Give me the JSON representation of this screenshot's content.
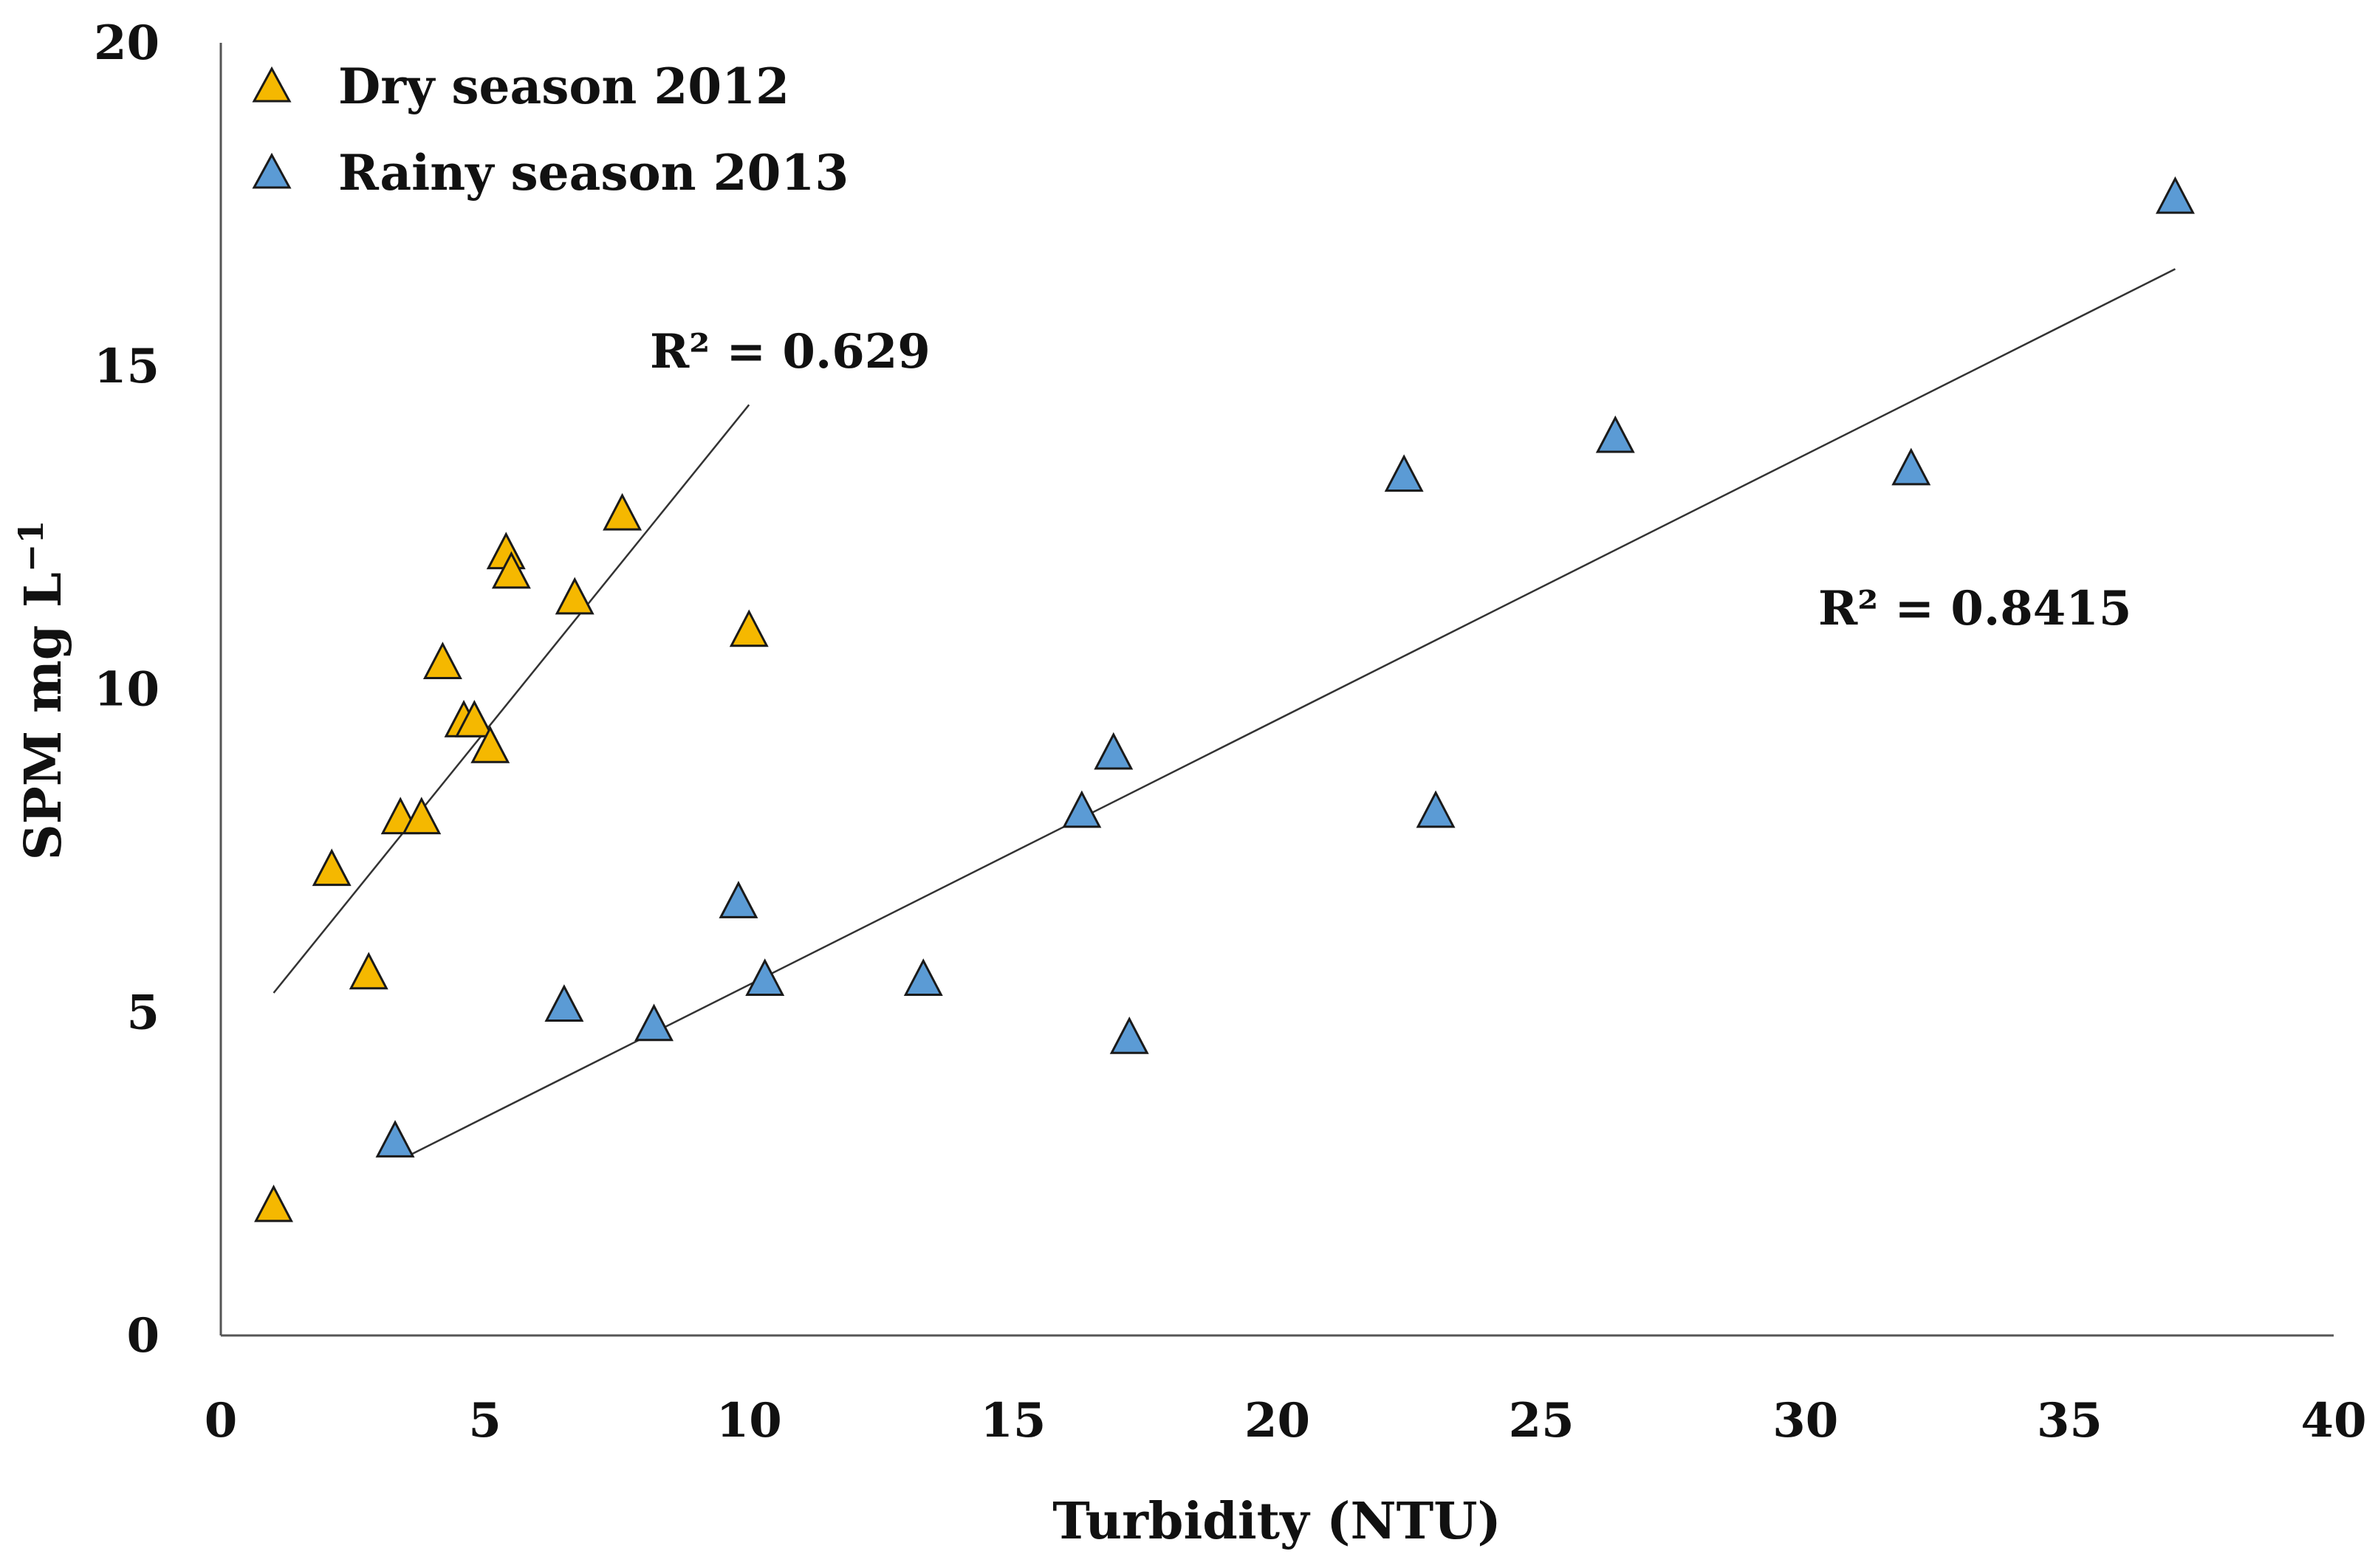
{
  "chart_data": {
    "type": "scatter",
    "title": "",
    "xlabel": "Turbidity (NTU)",
    "ylabel": "SPM  mg L",
    "ylabel_superscript": "−1",
    "xlim": [
      0,
      40
    ],
    "ylim": [
      0,
      20
    ],
    "xticks": [
      0,
      5,
      10,
      15,
      20,
      25,
      30,
      35,
      40
    ],
    "yticks": [
      0,
      5,
      10,
      15,
      20
    ],
    "legend_position": "top-left",
    "marker": "triangle",
    "series": [
      {
        "name": "Dry season 2012",
        "color": "#F5B800",
        "points": [
          {
            "x": 1.0,
            "y": 2.0
          },
          {
            "x": 2.1,
            "y": 7.2
          },
          {
            "x": 2.8,
            "y": 5.6
          },
          {
            "x": 3.4,
            "y": 8.0
          },
          {
            "x": 3.8,
            "y": 8.0
          },
          {
            "x": 4.2,
            "y": 10.4
          },
          {
            "x": 4.6,
            "y": 9.5
          },
          {
            "x": 4.8,
            "y": 9.5
          },
          {
            "x": 5.1,
            "y": 9.1
          },
          {
            "x": 5.4,
            "y": 12.1
          },
          {
            "x": 5.5,
            "y": 11.8
          },
          {
            "x": 6.7,
            "y": 11.4
          },
          {
            "x": 7.6,
            "y": 12.7
          },
          {
            "x": 10.0,
            "y": 10.9
          }
        ],
        "trendline": {
          "x": [
            1.0,
            10.0
          ],
          "y": [
            5.3,
            14.4
          ]
        },
        "r2_label": "R² = 0.629"
      },
      {
        "name": "Rainy season 2013",
        "color": "#5B9BD5",
        "points": [
          {
            "x": 3.3,
            "y": 3.0
          },
          {
            "x": 6.5,
            "y": 5.1
          },
          {
            "x": 8.2,
            "y": 4.8
          },
          {
            "x": 9.8,
            "y": 6.7
          },
          {
            "x": 10.3,
            "y": 5.5
          },
          {
            "x": 13.3,
            "y": 5.5
          },
          {
            "x": 16.3,
            "y": 8.1
          },
          {
            "x": 16.9,
            "y": 9.0
          },
          {
            "x": 17.2,
            "y": 4.6
          },
          {
            "x": 22.4,
            "y": 13.3
          },
          {
            "x": 23.0,
            "y": 8.1
          },
          {
            "x": 26.4,
            "y": 13.9
          },
          {
            "x": 32.0,
            "y": 13.4
          },
          {
            "x": 37.0,
            "y": 17.6
          }
        ],
        "trendline": {
          "x": [
            3.6,
            37.0
          ],
          "y": [
            2.8,
            16.5
          ]
        },
        "r2_label": "R² = 0.8415"
      }
    ]
  }
}
